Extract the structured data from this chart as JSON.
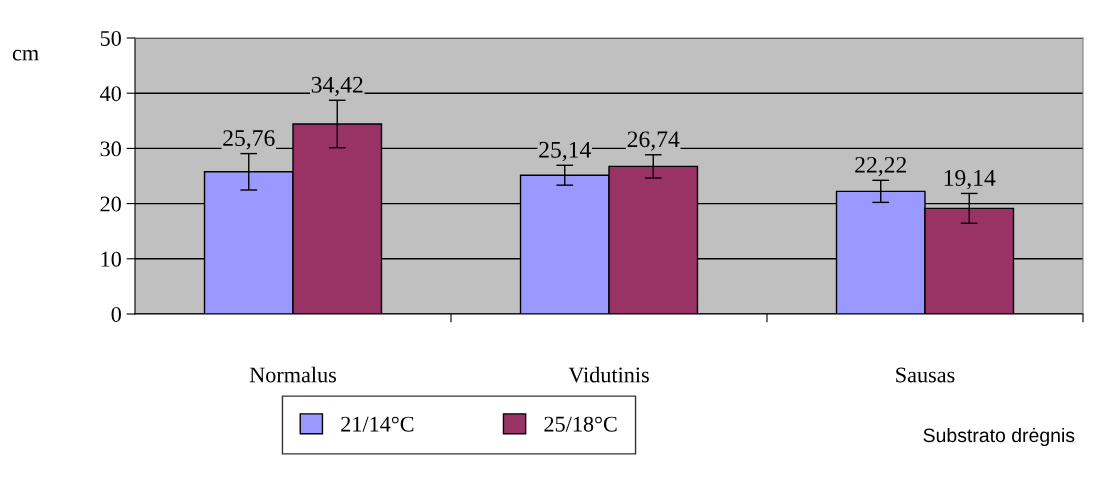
{
  "chart_data": {
    "type": "bar",
    "categories": [
      "Normalus",
      "Vidutinis",
      "Sausas"
    ],
    "xlabel": "Substrato drėgnis",
    "ylabel": "cm",
    "series": [
      {
        "name": "21/14°C",
        "color": "#9999ff",
        "values": [
          25.76,
          25.14,
          22.22
        ],
        "errors": [
          3.3,
          1.8,
          2.0
        ],
        "value_labels": [
          "25,76",
          "25,14",
          "22,22"
        ]
      },
      {
        "name": "25/18°C",
        "color": "#993366",
        "values": [
          34.42,
          26.74,
          19.14
        ],
        "errors": [
          4.3,
          2.1,
          2.7
        ],
        "value_labels": [
          "34,42",
          "26,74",
          "19,14"
        ]
      }
    ],
    "ylim": [
      0,
      50
    ],
    "yticks": [
      0,
      10,
      20,
      30,
      40,
      50
    ],
    "grid": "y",
    "legend": "bottom"
  }
}
